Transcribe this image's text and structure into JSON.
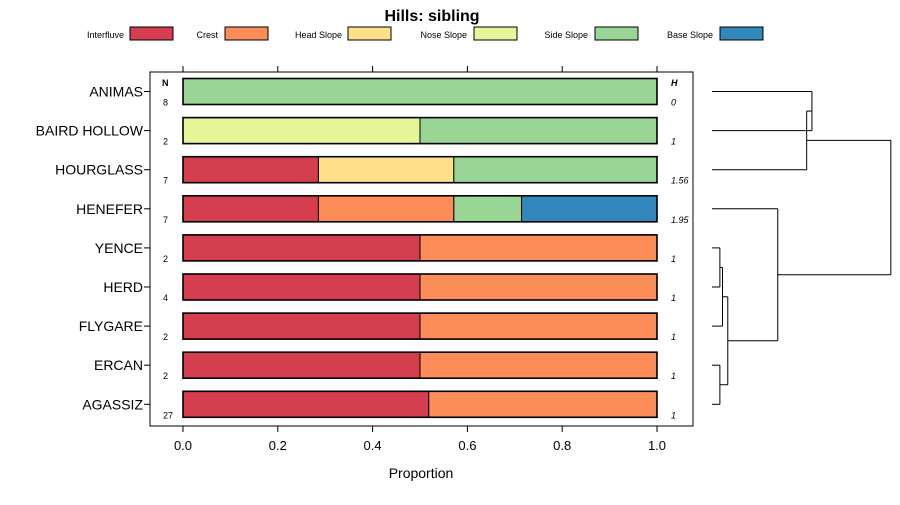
{
  "chart_data": {
    "type": "bar",
    "stacked": true,
    "orientation": "horizontal",
    "title": "Hills: sibling",
    "xlabel": "Proportion",
    "ylabel": "",
    "xlim": [
      0,
      1
    ],
    "xticks": [
      {
        "v": 0.0,
        "label": "0.0"
      },
      {
        "v": 0.2,
        "label": "0.2"
      },
      {
        "v": 0.4,
        "label": "0.4"
      },
      {
        "v": 0.6,
        "label": "0.6"
      },
      {
        "v": 0.8,
        "label": "0.8"
      },
      {
        "v": 1.0,
        "label": "1.0"
      }
    ],
    "n_header": "N",
    "h_header": "H",
    "legend": [
      {
        "name": "Interfluve",
        "color": "#d53e4f"
      },
      {
        "name": "Crest",
        "color": "#fc8d59"
      },
      {
        "name": "Head Slope",
        "color": "#fee08b"
      },
      {
        "name": "Nose Slope",
        "color": "#e6f598"
      },
      {
        "name": "Side Slope",
        "color": "#99d594"
      },
      {
        "name": "Base Slope",
        "color": "#3288bd"
      }
    ],
    "categories": [
      "ANIMAS",
      "BAIRD HOLLOW",
      "HOURGLASS",
      "HENEFER",
      "YENCE",
      "HERD",
      "FLYGARE",
      "ERCAN",
      "AGASSIZ"
    ],
    "n": [
      "8",
      "2",
      "7",
      "7",
      "2",
      "4",
      "2",
      "2",
      "27"
    ],
    "h": [
      "0",
      "1",
      "1.56",
      "1.95",
      "1",
      "1",
      "1",
      "1",
      "1"
    ],
    "series": [
      {
        "name": "Interfluve",
        "values": [
          0,
          0,
          0.2857,
          0.2857,
          0.5,
          0.5,
          0.5,
          0.5,
          0.5185
        ]
      },
      {
        "name": "Crest",
        "values": [
          0,
          0,
          0,
          0.2857,
          0.5,
          0.5,
          0.5,
          0.5,
          0.4815
        ]
      },
      {
        "name": "Head Slope",
        "values": [
          0,
          0,
          0.2857,
          0,
          0,
          0,
          0,
          0,
          0
        ]
      },
      {
        "name": "Nose Slope",
        "values": [
          0,
          0.5,
          0,
          0,
          0,
          0,
          0,
          0,
          0
        ]
      },
      {
        "name": "Side Slope",
        "values": [
          1,
          0.5,
          0.4286,
          0.1429,
          0,
          0,
          0,
          0,
          0
        ]
      },
      {
        "name": "Base Slope",
        "values": [
          0,
          0,
          0,
          0.2857,
          0,
          0,
          0,
          0,
          0
        ]
      }
    ],
    "dendrogram": [
      {
        "id": "m1",
        "left": "ANIMAS",
        "right": "BAIRD HOLLOW",
        "height": 0.38
      },
      {
        "id": "m2",
        "left": "m1",
        "right": "HOURGLASS",
        "height": 0.36
      },
      {
        "id": "m3",
        "left": "YENCE",
        "right": "HERD",
        "height": 0.03
      },
      {
        "id": "m4",
        "left": "m3",
        "right": "FLYGARE",
        "height": 0.04
      },
      {
        "id": "m5",
        "left": "ERCAN",
        "right": "AGASSIZ",
        "height": 0.03
      },
      {
        "id": "m6",
        "left": "m4",
        "right": "m5",
        "height": 0.06
      },
      {
        "id": "m7",
        "left": "HENEFER",
        "right": "m6",
        "height": 0.25
      },
      {
        "id": "m8",
        "left": "m2",
        "right": "m7",
        "height": 0.68
      }
    ]
  }
}
